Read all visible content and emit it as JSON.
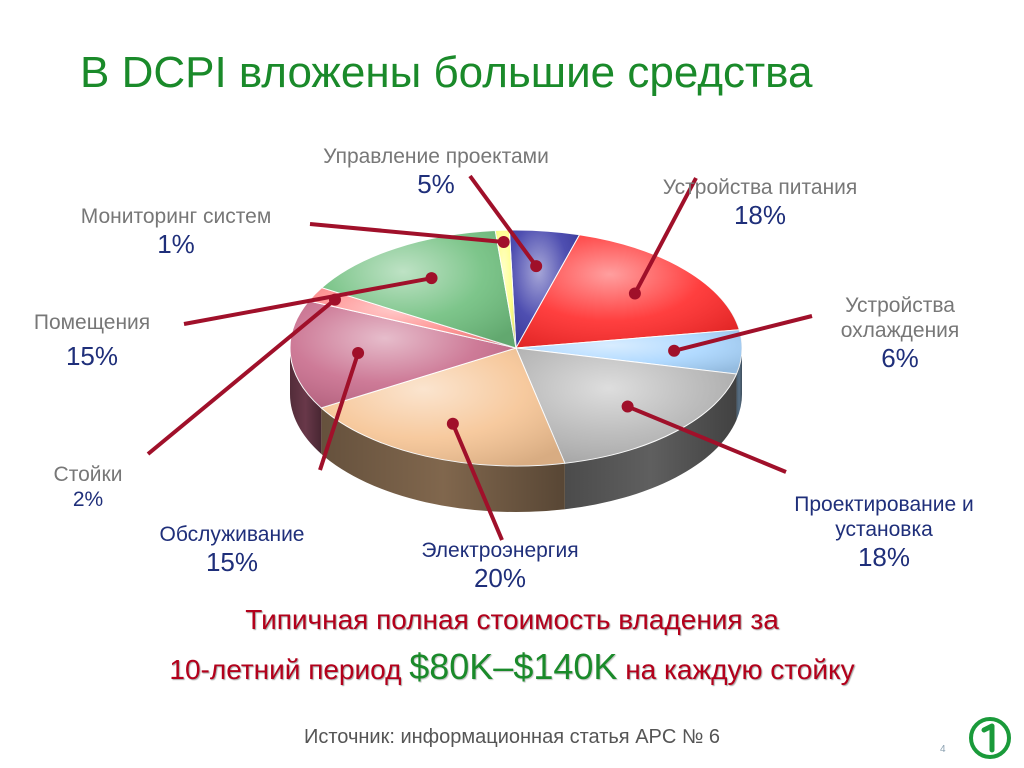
{
  "slide": {
    "title": "В DCPI вложены большие средства",
    "tco_line1": "Типичная полная стоимость владения за",
    "tco_line2_prefix": "10-летний период ",
    "tco_amount": "$80K–$140K",
    "tco_line2_suffix": " на каждую стойку",
    "source": "Источник: информационная статья APC № 6",
    "page_number": "4",
    "logo_icon": "green-circle-one-logo"
  },
  "chart_data": {
    "type": "pie",
    "style": "3d-exploded",
    "title": "",
    "slices": [
      {
        "label": "Управление проектами",
        "value_label": "5%",
        "value": 5,
        "color": "#3b3ba8"
      },
      {
        "label": "Устройства питания",
        "value_label": "18%",
        "value": 18,
        "color": "#ff2a2a"
      },
      {
        "label": "Устройства охлаждения",
        "value_label": "6%",
        "value": 6,
        "color": "#a9d6ff"
      },
      {
        "label": "Проектирование и установка",
        "value_label": "18%",
        "value": 18,
        "color": "#b5b5b5"
      },
      {
        "label": "Электроэнергия",
        "value_label": "20%",
        "value": 20,
        "color": "#f6c494"
      },
      {
        "label": "Обслуживание",
        "value_label": "15%",
        "value": 15,
        "color": "#c86c8c"
      },
      {
        "label": "Стойки",
        "value_label": "2%",
        "value": 2,
        "color": "#ff8a8a"
      },
      {
        "label": "Помещения",
        "value_label": "15%",
        "value": 15,
        "color": "#6fbf7e"
      },
      {
        "label": "Мониторинг систем",
        "value_label": "1%",
        "value": 1,
        "color": "#ffff80"
      }
    ]
  }
}
